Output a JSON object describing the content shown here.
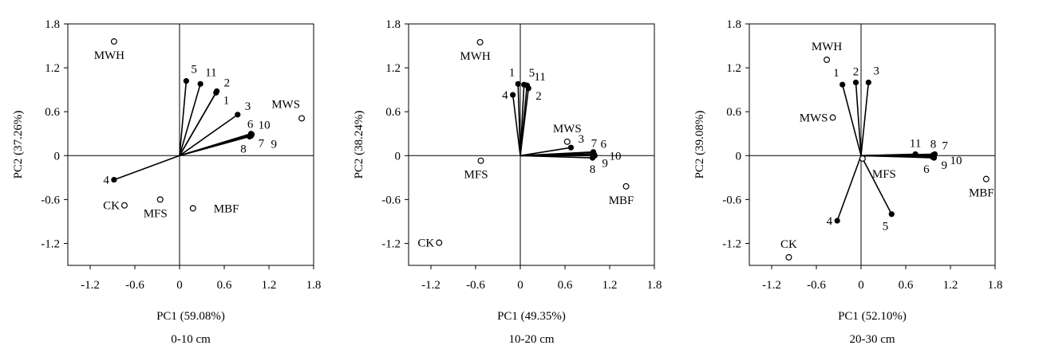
{
  "chart_data": [
    {
      "type": "scatter",
      "subtitle": "0-10 cm",
      "xlabel": "PC1 (59.08%)",
      "ylabel": "PC2 (37.26%)",
      "xlim": [
        -1.5,
        1.8
      ],
      "ylim": [
        -1.5,
        1.8
      ],
      "xticks": [
        -1.2,
        -0.6,
        0,
        0.6,
        1.2,
        1.8
      ],
      "yticks": [
        -1.2,
        -0.6,
        0,
        0.6,
        1.2,
        1.8
      ],
      "xtick_labels": [
        "-1.2",
        "-0.6",
        "0",
        "0.6",
        "1.2",
        "1.8"
      ],
      "ytick_labels": [
        "-1.2",
        "-0.6",
        "0",
        "0.6",
        "1.2",
        "1.8"
      ],
      "grid": false,
      "vectors": [
        {
          "label": "1",
          "x": 0.49,
          "y": 0.86,
          "label_pos": "right-below"
        },
        {
          "label": "2",
          "x": 0.5,
          "y": 0.88,
          "label_pos": "right-above"
        },
        {
          "label": "3",
          "x": 0.78,
          "y": 0.56,
          "label_pos": "right-above"
        },
        {
          "label": "4",
          "x": -0.88,
          "y": -0.33,
          "label_pos": "left"
        },
        {
          "label": "5",
          "x": 0.09,
          "y": 1.02,
          "label_pos": "above-right"
        },
        {
          "label": "6",
          "x": 0.95,
          "y": 0.28,
          "label_pos": "above"
        },
        {
          "label": "7",
          "x": 0.96,
          "y": 0.27,
          "label_pos": "right-below"
        },
        {
          "label": "8",
          "x": 0.94,
          "y": 0.26,
          "label_pos": "below-left"
        },
        {
          "label": "9",
          "x": 0.97,
          "y": 0.29,
          "label_pos": "right-far-below"
        },
        {
          "label": "10",
          "x": 0.96,
          "y": 0.3,
          "label_pos": "right-above"
        },
        {
          "label": "11",
          "x": 0.28,
          "y": 0.98,
          "label_pos": "above-right"
        }
      ],
      "samples": [
        {
          "label": "MWH",
          "x": -0.88,
          "y": 1.56,
          "label_pos": "below"
        },
        {
          "label": "MWS",
          "x": 1.64,
          "y": 0.51,
          "label_pos": "above-left"
        },
        {
          "label": "CK",
          "x": -0.74,
          "y": -0.68,
          "label_pos": "left"
        },
        {
          "label": "MFS",
          "x": -0.26,
          "y": -0.6,
          "label_pos": "below"
        },
        {
          "label": "MBF",
          "x": 0.18,
          "y": -0.72,
          "label_pos": "right"
        }
      ]
    },
    {
      "type": "scatter",
      "subtitle": "10-20 cm",
      "xlabel": "PC1 (49.35%)",
      "ylabel": "PC2 (38.24%)",
      "xlim": [
        -1.5,
        1.8
      ],
      "ylim": [
        -1.5,
        1.8
      ],
      "xticks": [
        -1.2,
        -0.6,
        0,
        0.6,
        1.2,
        1.8
      ],
      "yticks": [
        -1.2,
        -0.6,
        0,
        0.6,
        1.2,
        1.8
      ],
      "xtick_labels": [
        "-1.2",
        "-0.6",
        "0",
        "0.6",
        "1.2",
        "1.8"
      ],
      "ytick_labels": [
        "-1.2",
        "-0.6",
        "0",
        "0.6",
        "1.2",
        "1.8"
      ],
      "grid": false,
      "vectors": [
        {
          "label": "1",
          "x": -0.03,
          "y": 0.98,
          "label_pos": "above-left"
        },
        {
          "label": "2",
          "x": 0.11,
          "y": 0.92,
          "label_pos": "right-below"
        },
        {
          "label": "3",
          "x": 0.68,
          "y": 0.11,
          "label_pos": "right-above"
        },
        {
          "label": "4",
          "x": -0.1,
          "y": 0.83,
          "label_pos": "left"
        },
        {
          "label": "5",
          "x": 0.05,
          "y": 0.97,
          "label_pos": "above-right"
        },
        {
          "label": "6",
          "x": 0.98,
          "y": 0.04,
          "label_pos": "right-above"
        },
        {
          "label": "7",
          "x": 0.99,
          "y": 0.02,
          "label_pos": "above"
        },
        {
          "label": "8",
          "x": 0.97,
          "y": -0.03,
          "label_pos": "below"
        },
        {
          "label": "9",
          "x": 1.0,
          "y": 0.0,
          "label_pos": "right-below"
        },
        {
          "label": "10",
          "x": 0.98,
          "y": 0.05,
          "label_pos": "right-far"
        },
        {
          "label": "11",
          "x": 0.09,
          "y": 0.96,
          "label_pos": "right-above"
        }
      ],
      "samples": [
        {
          "label": "MWH",
          "x": -0.54,
          "y": 1.55,
          "label_pos": "below"
        },
        {
          "label": "MWS",
          "x": 0.63,
          "y": 0.19,
          "label_pos": "above"
        },
        {
          "label": "MFS",
          "x": -0.53,
          "y": -0.07,
          "label_pos": "below"
        },
        {
          "label": "MBF",
          "x": 1.42,
          "y": -0.42,
          "label_pos": "below"
        },
        {
          "label": "CK",
          "x": -1.09,
          "y": -1.19,
          "label_pos": "left"
        }
      ]
    },
    {
      "type": "scatter",
      "subtitle": "20-30 cm",
      "xlabel": "PC1 (52.10%)",
      "ylabel": "PC2 (39.08%)",
      "xlim": [
        -1.5,
        1.8
      ],
      "ylim": [
        -1.5,
        1.8
      ],
      "xticks": [
        -1.2,
        -0.6,
        0,
        0.6,
        1.2,
        1.8
      ],
      "yticks": [
        -1.2,
        -0.6,
        0,
        0.6,
        1.2,
        1.8
      ],
      "xtick_labels": [
        "-1.2",
        "-0.6",
        "0",
        "0.6",
        "1.2",
        "1.8"
      ],
      "ytick_labels": [
        "-1.2",
        "-0.6",
        "0",
        "0.6",
        "1.2",
        "1.8"
      ],
      "grid": false,
      "vectors": [
        {
          "label": "1",
          "x": -0.25,
          "y": 0.97,
          "label_pos": "above-left"
        },
        {
          "label": "2",
          "x": -0.07,
          "y": 1.0,
          "label_pos": "above"
        },
        {
          "label": "3",
          "x": 0.1,
          "y": 1.0,
          "label_pos": "above-right"
        },
        {
          "label": "4",
          "x": -0.32,
          "y": -0.89,
          "label_pos": "left"
        },
        {
          "label": "5",
          "x": 0.41,
          "y": -0.8,
          "label_pos": "below-left"
        },
        {
          "label": "6",
          "x": 0.96,
          "y": -0.02,
          "label_pos": "below-left"
        },
        {
          "label": "7",
          "x": 0.99,
          "y": 0.02,
          "label_pos": "right-above"
        },
        {
          "label": "8",
          "x": 0.97,
          "y": 0.01,
          "label_pos": "above"
        },
        {
          "label": "9",
          "x": 0.98,
          "y": -0.03,
          "label_pos": "right-below"
        },
        {
          "label": "10",
          "x": 0.98,
          "y": -0.01,
          "label_pos": "right-far"
        },
        {
          "label": "11",
          "x": 0.73,
          "y": 0.02,
          "label_pos": "above"
        }
      ],
      "samples": [
        {
          "label": "MWH",
          "x": -0.46,
          "y": 1.31,
          "label_pos": "above"
        },
        {
          "label": "MWS",
          "x": -0.38,
          "y": 0.52,
          "label_pos": "left"
        },
        {
          "label": "MFS",
          "x": 0.02,
          "y": -0.04,
          "label_pos": "right-below"
        },
        {
          "label": "MBF",
          "x": 1.68,
          "y": -0.32,
          "label_pos": "below"
        },
        {
          "label": "CK",
          "x": -0.97,
          "y": -1.39,
          "label_pos": "above"
        }
      ]
    }
  ]
}
